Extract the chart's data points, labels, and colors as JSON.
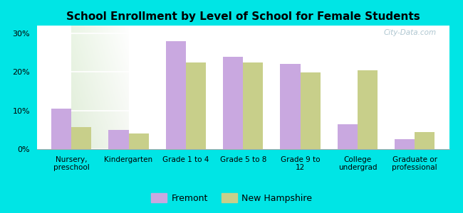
{
  "title": "School Enrollment by Level of School for Female Students",
  "categories": [
    "Nursery,\npreschool",
    "Kindergarten",
    "Grade 1 to 4",
    "Grade 5 to 8",
    "Grade 9 to\n12",
    "College\nundergrad",
    "Graduate or\nprofessional"
  ],
  "fremont": [
    10.5,
    5.0,
    28.0,
    24.0,
    22.0,
    6.5,
    2.5
  ],
  "new_hampshire": [
    5.7,
    4.0,
    22.5,
    22.5,
    19.8,
    20.5,
    4.5
  ],
  "fremont_color": "#c9a8e0",
  "nh_color": "#c8cf8a",
  "background_color": "#00e5e5",
  "ylim": [
    0,
    32
  ],
  "yticks": [
    0,
    10,
    20,
    30
  ],
  "ytick_labels": [
    "0%",
    "10%",
    "20%",
    "30%"
  ],
  "bar_width": 0.35,
  "legend_fremont": "Fremont",
  "legend_nh": "New Hampshire",
  "watermark": "City-Data.com"
}
